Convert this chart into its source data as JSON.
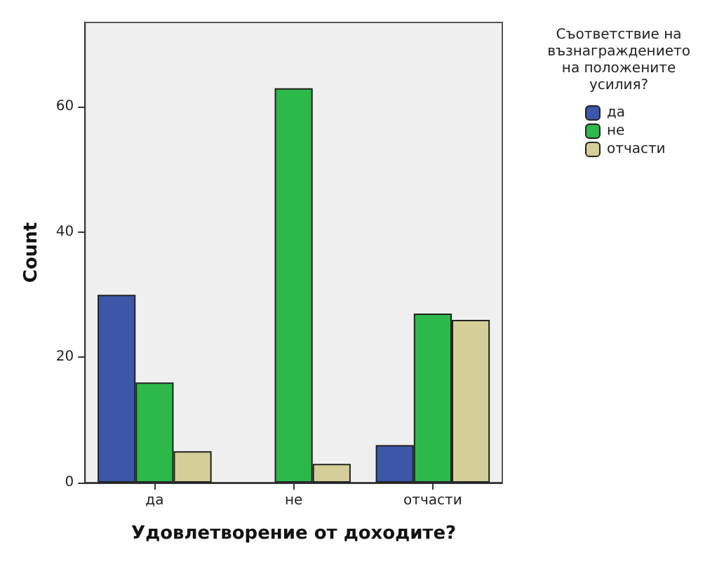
{
  "chart_data": {
    "type": "bar",
    "xlabel": "Удовлетворение от доходите?",
    "ylabel": "Count",
    "legend_title": "Съответствие на\nвъзнаграждението\nна положените\nусилия?",
    "legend": "top right",
    "grid": false,
    "categories": [
      "да",
      "не",
      "отчасти"
    ],
    "series": [
      {
        "name": "да",
        "color": "#3d57a8",
        "values": [
          30,
          null,
          6
        ]
      },
      {
        "name": "не",
        "color": "#2db84a",
        "values": [
          16,
          63,
          27
        ]
      },
      {
        "name": "отчасти",
        "color": "#d4cf98",
        "values": [
          5,
          3,
          26
        ]
      }
    ],
    "ylim": [
      0,
      73.5
    ],
    "yticks": [
      0,
      20,
      40,
      60
    ]
  }
}
